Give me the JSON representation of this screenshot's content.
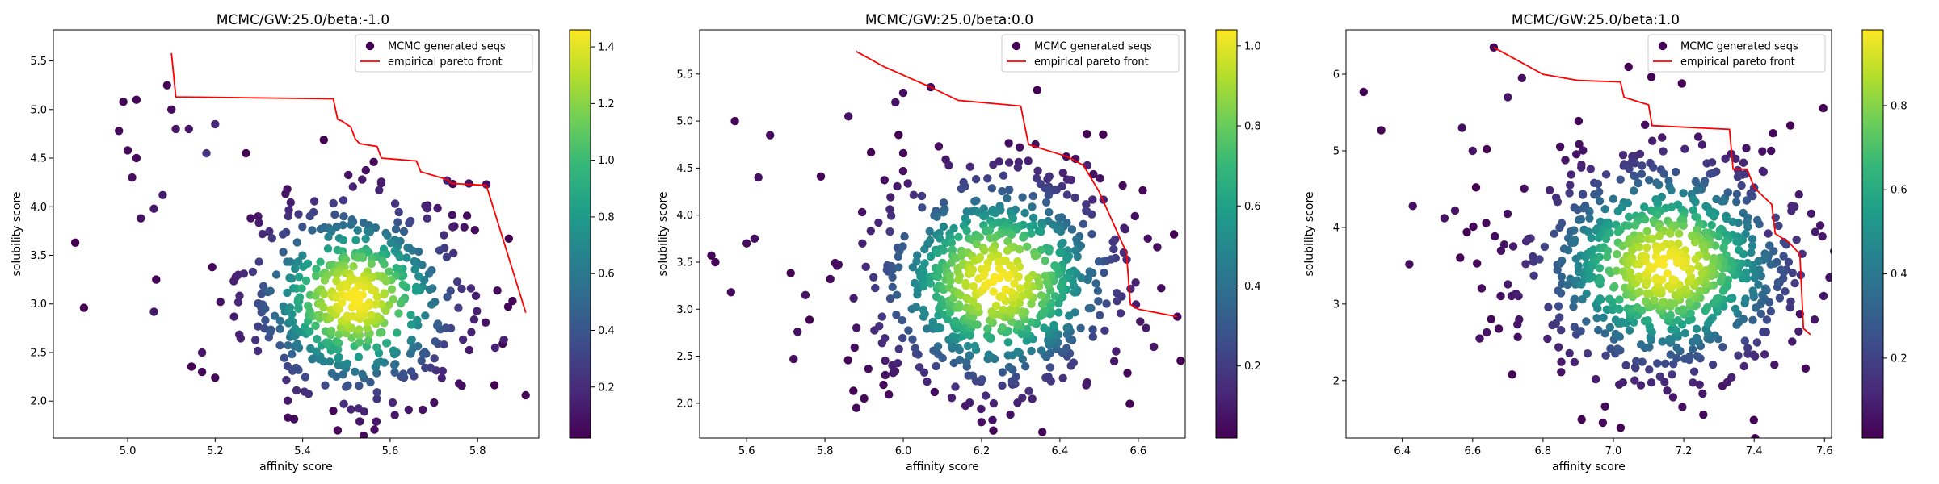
{
  "figure": {
    "legend_labels": {
      "scatter": "MCMC generated seqs",
      "line": "empirical pareto front"
    },
    "colors": {
      "pareto_line": "#ff0000",
      "axes": "#000000",
      "background": "#ffffff"
    },
    "colormap": "viridis"
  },
  "chart_data": [
    {
      "type": "scatter",
      "title": "MCMC/GW:25.0/beta:-1.0",
      "xlabel": "affinity score",
      "ylabel": "solubility score",
      "xlim": [
        4.83,
        5.94
      ],
      "ylim": [
        1.62,
        5.82
      ],
      "xticks": [
        5.0,
        5.2,
        5.4,
        5.6,
        5.8
      ],
      "xtick_labels": [
        "5.0",
        "5.2",
        "5.4",
        "5.6",
        "5.8"
      ],
      "yticks": [
        2.0,
        2.5,
        3.0,
        3.5,
        4.0,
        4.5,
        5.0,
        5.5
      ],
      "ytick_labels": [
        "2.0",
        "2.5",
        "3.0",
        "3.5",
        "4.0",
        "4.5",
        "5.0",
        "5.5"
      ],
      "legend": "top-right",
      "grid": false,
      "colorbar": {
        "range": [
          0.02,
          1.46
        ],
        "ticks": [
          0.2,
          0.4,
          0.6,
          0.8,
          1.0,
          1.2,
          1.4
        ],
        "tick_labels": [
          "0.2",
          "0.4",
          "0.6",
          "0.8",
          "1.0",
          "1.2",
          "1.4"
        ]
      },
      "cloud": {
        "center": [
          5.52,
          3.05
        ],
        "spread": [
          0.13,
          0.55
        ],
        "count": 520,
        "center_density": 1.46
      },
      "points": [
        [
          4.88,
          3.63,
          0.02
        ],
        [
          4.9,
          2.96,
          0.02
        ],
        [
          4.98,
          4.78,
          0.05
        ],
        [
          4.99,
          5.08,
          0.04
        ],
        [
          5.02,
          5.1,
          0.04
        ],
        [
          5.0,
          4.58,
          0.06
        ],
        [
          5.02,
          4.5,
          0.06
        ],
        [
          5.01,
          4.3,
          0.07
        ],
        [
          5.03,
          3.88,
          0.09
        ],
        [
          5.06,
          3.98,
          0.12
        ],
        [
          5.08,
          4.12,
          0.14
        ],
        [
          5.09,
          5.25,
          0.04
        ],
        [
          5.1,
          5.0,
          0.06
        ],
        [
          5.14,
          4.8,
          0.1
        ],
        [
          5.11,
          4.8,
          0.1
        ],
        [
          5.06,
          2.92,
          0.12
        ],
        [
          5.17,
          2.3,
          0.05
        ],
        [
          5.2,
          2.24,
          0.05
        ],
        [
          5.17,
          2.5,
          0.1
        ],
        [
          5.47,
          1.9,
          0.04
        ],
        [
          5.48,
          1.7,
          0.03
        ],
        [
          5.2,
          4.85,
          0.18
        ],
        [
          5.18,
          4.55,
          0.22
        ],
        [
          5.73,
          4.27,
          0.15
        ],
        [
          5.78,
          4.24,
          0.1
        ],
        [
          5.82,
          4.23,
          0.08
        ],
        [
          5.86,
          2.63,
          0.15
        ],
        [
          5.84,
          2.55,
          0.16
        ]
      ],
      "pareto_front": {
        "x": [
          5.1,
          5.11,
          5.47,
          5.48,
          5.49,
          5.51,
          5.52,
          5.53,
          5.57,
          5.58,
          5.66,
          5.67,
          5.73,
          5.74,
          5.82,
          5.91
        ],
        "y": [
          5.58,
          5.13,
          5.11,
          4.9,
          4.88,
          4.82,
          4.7,
          4.65,
          4.62,
          4.5,
          4.47,
          4.36,
          4.28,
          4.24,
          4.22,
          2.91
        ]
      }
    },
    {
      "type": "scatter",
      "title": "MCMC/GW:25.0/beta:0.0",
      "xlabel": "affinity score",
      "ylabel": "solubility score",
      "xlim": [
        5.48,
        6.72
      ],
      "ylim": [
        1.63,
        5.97
      ],
      "xticks": [
        5.6,
        5.8,
        6.0,
        6.2,
        6.4,
        6.6
      ],
      "xtick_labels": [
        "5.6",
        "5.8",
        "6.0",
        "6.2",
        "6.4",
        "6.6"
      ],
      "yticks": [
        2.0,
        2.5,
        3.0,
        3.5,
        4.0,
        4.5,
        5.0,
        5.5
      ],
      "ytick_labels": [
        "2.0",
        "2.5",
        "3.0",
        "3.5",
        "4.0",
        "4.5",
        "5.0",
        "5.5"
      ],
      "legend": "top-right",
      "grid": false,
      "colorbar": {
        "range": [
          0.02,
          1.04
        ],
        "ticks": [
          0.2,
          0.4,
          0.6,
          0.8,
          1.0
        ],
        "tick_labels": [
          "0.2",
          "0.4",
          "0.6",
          "0.8",
          "1.0"
        ]
      },
      "cloud": {
        "center": [
          6.24,
          3.3
        ],
        "spread": [
          0.17,
          0.62
        ],
        "count": 720,
        "center_density": 1.04
      },
      "points": [
        [
          5.51,
          3.57,
          0.03
        ],
        [
          5.52,
          3.5,
          0.03
        ],
        [
          5.56,
          3.18,
          0.04
        ],
        [
          5.57,
          5.0,
          0.03
        ],
        [
          5.6,
          3.7,
          0.05
        ],
        [
          5.62,
          3.75,
          0.06
        ],
        [
          5.63,
          4.4,
          0.06
        ],
        [
          5.66,
          4.85,
          0.05
        ],
        [
          5.72,
          2.47,
          0.05
        ],
        [
          5.73,
          2.76,
          0.06
        ],
        [
          5.75,
          3.15,
          0.07
        ],
        [
          5.88,
          1.95,
          0.04
        ],
        [
          5.9,
          2.05,
          0.04
        ],
        [
          6.08,
          2.12,
          0.05
        ],
        [
          6.23,
          1.71,
          0.03
        ],
        [
          6.07,
          5.36,
          0.06
        ],
        [
          6.0,
          5.3,
          0.06
        ],
        [
          5.98,
          5.2,
          0.07
        ],
        [
          6.7,
          2.92,
          0.04
        ],
        [
          6.64,
          2.6,
          0.08
        ],
        [
          6.62,
          2.8,
          0.1
        ],
        [
          6.47,
          4.53,
          0.12
        ],
        [
          5.86,
          5.05,
          0.07
        ]
      ],
      "pareto_front": {
        "x": [
          5.88,
          5.95,
          6.07,
          6.14,
          6.3,
          6.32,
          6.42,
          6.46,
          6.5,
          6.57,
          6.58,
          6.6,
          6.7
        ],
        "y": [
          5.74,
          5.58,
          5.36,
          5.22,
          5.16,
          4.75,
          4.62,
          4.53,
          4.25,
          3.6,
          3.05,
          3.0,
          2.92
        ]
      }
    },
    {
      "type": "scatter",
      "title": "MCMC/GW:25.0/beta:1.0",
      "xlabel": "affinity score",
      "ylabel": "solubility score",
      "xlim": [
        6.24,
        7.62
      ],
      "ylim": [
        1.25,
        6.58
      ],
      "xticks": [
        6.4,
        6.6,
        6.8,
        7.0,
        7.2,
        7.4,
        7.6
      ],
      "xtick_labels": [
        "6.4",
        "6.6",
        "6.8",
        "7.0",
        "7.2",
        "7.4",
        "7.6"
      ],
      "yticks": [
        2,
        3,
        4,
        5,
        6
      ],
      "ytick_labels": [
        "2",
        "3",
        "4",
        "5",
        "6"
      ],
      "legend": "top-right",
      "grid": false,
      "colorbar": {
        "range": [
          0.01,
          0.98
        ],
        "ticks": [
          0.2,
          0.4,
          0.6,
          0.8
        ],
        "tick_labels": [
          "0.2",
          "0.4",
          "0.6",
          "0.8"
        ]
      },
      "cloud": {
        "center": [
          7.15,
          3.5
        ],
        "spread": [
          0.2,
          0.75
        ],
        "count": 820,
        "center_density": 0.98
      },
      "points": [
        [
          6.29,
          5.77,
          0.02
        ],
        [
          6.34,
          5.27,
          0.02
        ],
        [
          6.42,
          3.52,
          0.04
        ],
        [
          6.43,
          4.28,
          0.05
        ],
        [
          6.52,
          4.12,
          0.06
        ],
        [
          6.55,
          4.22,
          0.06
        ],
        [
          6.57,
          5.3,
          0.05
        ],
        [
          6.6,
          5.0,
          0.06
        ],
        [
          6.62,
          2.55,
          0.06
        ],
        [
          6.64,
          2.63,
          0.06
        ],
        [
          6.66,
          6.35,
          0.02
        ],
        [
          6.97,
          1.45,
          0.03
        ],
        [
          7.31,
          1.93,
          0.06
        ],
        [
          7.53,
          2.87,
          0.05
        ],
        [
          7.4,
          4.52,
          0.12
        ],
        [
          7.44,
          3.92,
          0.15
        ],
        [
          6.7,
          5.7,
          0.07
        ],
        [
          6.74,
          5.95,
          0.05
        ]
      ],
      "pareto_front": {
        "x": [
          6.66,
          6.72,
          6.8,
          6.9,
          7.02,
          7.03,
          7.1,
          7.11,
          7.24,
          7.33,
          7.34,
          7.38,
          7.4,
          7.45,
          7.46,
          7.5,
          7.53,
          7.54,
          7.56
        ],
        "y": [
          6.35,
          6.2,
          6.0,
          5.92,
          5.9,
          5.7,
          5.6,
          5.33,
          5.3,
          5.28,
          4.76,
          4.76,
          4.52,
          4.3,
          3.92,
          3.8,
          3.65,
          2.68,
          2.6
        ]
      }
    }
  ]
}
